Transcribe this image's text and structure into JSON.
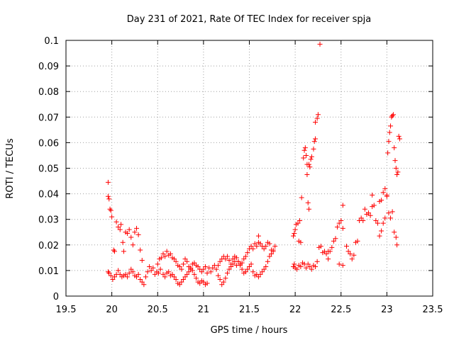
{
  "chart_data": {
    "type": "scatter",
    "title": "Day 231 of 2021, Rate Of TEC Index for receiver spja",
    "xlabel": "GPS time / hours",
    "ylabel": "ROTI / TECUs",
    "xlim": [
      19.5,
      23.5
    ],
    "ylim": [
      0,
      0.1
    ],
    "xticks": [
      "19.5",
      "20",
      "20.5",
      "21",
      "21.5",
      "22",
      "22.5",
      "23",
      "23.5"
    ],
    "yticks": [
      "0",
      "0.01",
      "0.02",
      "0.03",
      "0.04",
      "0.05",
      "0.06",
      "0.07",
      "0.08",
      "0.09",
      "0.1"
    ],
    "grid": true,
    "marker": "plus",
    "color": "#ff0000",
    "series": [
      {
        "name": "ROTI",
        "points": [
          [
            19.96,
            0.0445
          ],
          [
            19.96,
            0.039
          ],
          [
            19.97,
            0.038
          ],
          [
            19.98,
            0.034
          ],
          [
            19.99,
            0.0335
          ],
          [
            20.0,
            0.031
          ],
          [
            20.02,
            0.018
          ],
          [
            20.03,
            0.0175
          ],
          [
            20.05,
            0.029
          ],
          [
            20.07,
            0.027
          ],
          [
            20.09,
            0.026
          ],
          [
            20.1,
            0.028
          ],
          [
            20.12,
            0.021
          ],
          [
            20.13,
            0.0175
          ],
          [
            20.15,
            0.025
          ],
          [
            20.17,
            0.0245
          ],
          [
            20.19,
            0.026
          ],
          [
            20.21,
            0.023
          ],
          [
            20.23,
            0.02
          ],
          [
            20.25,
            0.025
          ],
          [
            20.27,
            0.0265
          ],
          [
            20.29,
            0.024
          ],
          [
            20.31,
            0.018
          ],
          [
            20.33,
            0.014
          ],
          [
            19.96,
            0.0095
          ],
          [
            19.97,
            0.009
          ],
          [
            19.99,
            0.008
          ],
          [
            20.01,
            0.0065
          ],
          [
            20.03,
            0.0075
          ],
          [
            20.05,
            0.0085
          ],
          [
            20.07,
            0.01
          ],
          [
            20.09,
            0.0085
          ],
          [
            20.11,
            0.0075
          ],
          [
            20.13,
            0.008
          ],
          [
            20.15,
            0.0085
          ],
          [
            20.17,
            0.0075
          ],
          [
            20.19,
            0.009
          ],
          [
            20.21,
            0.0105
          ],
          [
            20.23,
            0.0095
          ],
          [
            20.25,
            0.008
          ],
          [
            20.27,
            0.0075
          ],
          [
            20.29,
            0.0085
          ],
          [
            20.31,
            0.0065
          ],
          [
            20.33,
            0.0055
          ],
          [
            20.35,
            0.0045
          ],
          [
            20.37,
            0.0075
          ],
          [
            20.39,
            0.0095
          ],
          [
            20.41,
            0.0115
          ],
          [
            20.43,
            0.01
          ],
          [
            20.45,
            0.011
          ],
          [
            20.47,
            0.0085
          ],
          [
            20.49,
            0.0095
          ],
          [
            20.51,
            0.009
          ],
          [
            20.53,
            0.0105
          ],
          [
            20.5,
            0.0125
          ],
          [
            20.52,
            0.0145
          ],
          [
            20.54,
            0.015
          ],
          [
            20.56,
            0.0165
          ],
          [
            20.58,
            0.0155
          ],
          [
            20.6,
            0.0175
          ],
          [
            20.62,
            0.016
          ],
          [
            20.64,
            0.0165
          ],
          [
            20.66,
            0.015
          ],
          [
            20.68,
            0.0145
          ],
          [
            20.7,
            0.0135
          ],
          [
            20.72,
            0.012
          ],
          [
            20.74,
            0.0115
          ],
          [
            20.76,
            0.0105
          ],
          [
            20.78,
            0.0125
          ],
          [
            20.8,
            0.0145
          ],
          [
            20.82,
            0.0135
          ],
          [
            20.84,
            0.0115
          ],
          [
            20.86,
            0.0105
          ],
          [
            20.88,
            0.0125
          ],
          [
            20.9,
            0.013
          ],
          [
            20.92,
            0.012
          ],
          [
            20.94,
            0.0115
          ],
          [
            20.96,
            0.0105
          ],
          [
            20.98,
            0.0095
          ],
          [
            21.0,
            0.0105
          ],
          [
            21.02,
            0.0115
          ],
          [
            21.04,
            0.009
          ],
          [
            20.56,
            0.0085
          ],
          [
            20.58,
            0.0075
          ],
          [
            20.6,
            0.009
          ],
          [
            20.62,
            0.0095
          ],
          [
            20.64,
            0.008
          ],
          [
            20.66,
            0.0085
          ],
          [
            20.68,
            0.0075
          ],
          [
            20.7,
            0.0065
          ],
          [
            20.72,
            0.005
          ],
          [
            20.74,
            0.0045
          ],
          [
            20.76,
            0.0055
          ],
          [
            20.78,
            0.0065
          ],
          [
            20.8,
            0.0075
          ],
          [
            20.82,
            0.0085
          ],
          [
            20.84,
            0.0095
          ],
          [
            20.86,
            0.011
          ],
          [
            20.88,
            0.01
          ],
          [
            20.9,
            0.0085
          ],
          [
            20.92,
            0.007
          ],
          [
            20.94,
            0.0055
          ],
          [
            20.96,
            0.005
          ],
          [
            20.98,
            0.006
          ],
          [
            21.0,
            0.0055
          ],
          [
            21.02,
            0.0045
          ],
          [
            21.04,
            0.005
          ],
          [
            21.06,
            0.011
          ],
          [
            21.08,
            0.0095
          ],
          [
            21.1,
            0.011
          ],
          [
            21.12,
            0.012
          ],
          [
            21.14,
            0.0105
          ],
          [
            21.16,
            0.012
          ],
          [
            21.18,
            0.0135
          ],
          [
            21.2,
            0.0145
          ],
          [
            21.22,
            0.0155
          ],
          [
            21.24,
            0.0145
          ],
          [
            21.26,
            0.0155
          ],
          [
            21.28,
            0.014
          ],
          [
            21.3,
            0.0125
          ],
          [
            21.32,
            0.0145
          ],
          [
            21.34,
            0.0155
          ],
          [
            21.36,
            0.015
          ],
          [
            21.38,
            0.0135
          ],
          [
            21.4,
            0.0125
          ],
          [
            21.42,
            0.013
          ],
          [
            21.44,
            0.0145
          ],
          [
            21.46,
            0.0155
          ],
          [
            21.48,
            0.017
          ],
          [
            21.5,
            0.0185
          ],
          [
            21.52,
            0.0195
          ],
          [
            21.54,
            0.0185
          ],
          [
            21.56,
            0.0205
          ],
          [
            21.58,
            0.0195
          ],
          [
            21.6,
            0.021
          ],
          [
            21.62,
            0.0205
          ],
          [
            21.64,
            0.0195
          ],
          [
            21.66,
            0.0185
          ],
          [
            21.68,
            0.0195
          ],
          [
            21.7,
            0.021
          ],
          [
            21.72,
            0.0205
          ],
          [
            21.74,
            0.018
          ],
          [
            21.76,
            0.0175
          ],
          [
            21.78,
            0.0195
          ],
          [
            21.6,
            0.0235
          ],
          [
            21.16,
            0.008
          ],
          [
            21.18,
            0.0065
          ],
          [
            21.2,
            0.0045
          ],
          [
            21.22,
            0.0055
          ],
          [
            21.24,
            0.007
          ],
          [
            21.26,
            0.009
          ],
          [
            21.28,
            0.0105
          ],
          [
            21.3,
            0.0115
          ],
          [
            21.32,
            0.0125
          ],
          [
            21.34,
            0.0135
          ],
          [
            21.36,
            0.012
          ],
          [
            21.38,
            0.0135
          ],
          [
            21.4,
            0.012
          ],
          [
            21.42,
            0.0105
          ],
          [
            21.44,
            0.009
          ],
          [
            21.46,
            0.0095
          ],
          [
            21.48,
            0.0105
          ],
          [
            21.5,
            0.0115
          ],
          [
            21.52,
            0.0125
          ],
          [
            21.54,
            0.0095
          ],
          [
            21.56,
            0.008
          ],
          [
            21.58,
            0.0085
          ],
          [
            21.6,
            0.0075
          ],
          [
            21.62,
            0.0085
          ],
          [
            21.64,
            0.0095
          ],
          [
            21.66,
            0.0105
          ],
          [
            21.68,
            0.0115
          ],
          [
            21.7,
            0.0135
          ],
          [
            21.72,
            0.0155
          ],
          [
            21.74,
            0.0165
          ],
          [
            21.76,
            0.018
          ],
          [
            21.98,
            0.0235
          ],
          [
            21.99,
            0.0245
          ],
          [
            22.0,
            0.026
          ],
          [
            22.01,
            0.028
          ],
          [
            22.03,
            0.0285
          ],
          [
            22.05,
            0.0295
          ],
          [
            22.04,
            0.0215
          ],
          [
            22.06,
            0.021
          ],
          [
            22.07,
            0.0385
          ],
          [
            22.09,
            0.054
          ],
          [
            22.1,
            0.057
          ],
          [
            22.11,
            0.058
          ],
          [
            22.12,
            0.055
          ],
          [
            22.13,
            0.0515
          ],
          [
            22.13,
            0.0475
          ],
          [
            22.14,
            0.0365
          ],
          [
            22.15,
            0.034
          ],
          [
            22.15,
            0.0515
          ],
          [
            22.16,
            0.0505
          ],
          [
            22.17,
            0.0535
          ],
          [
            22.18,
            0.0545
          ],
          [
            22.2,
            0.0575
          ],
          [
            22.21,
            0.0605
          ],
          [
            22.22,
            0.0615
          ],
          [
            22.22,
            0.068
          ],
          [
            22.24,
            0.0695
          ],
          [
            22.25,
            0.071
          ],
          [
            22.27,
            0.0985
          ],
          [
            21.98,
            0.0115
          ],
          [
            21.99,
            0.0125
          ],
          [
            22.0,
            0.011
          ],
          [
            22.02,
            0.0105
          ],
          [
            22.04,
            0.012
          ],
          [
            22.06,
            0.0115
          ],
          [
            22.08,
            0.013
          ],
          [
            22.1,
            0.0125
          ],
          [
            22.12,
            0.011
          ],
          [
            22.14,
            0.0125
          ],
          [
            22.16,
            0.0115
          ],
          [
            22.18,
            0.0105
          ],
          [
            22.2,
            0.012
          ],
          [
            22.22,
            0.0115
          ],
          [
            22.24,
            0.0135
          ],
          [
            22.26,
            0.019
          ],
          [
            22.28,
            0.0195
          ],
          [
            22.3,
            0.017
          ],
          [
            22.32,
            0.0175
          ],
          [
            22.34,
            0.0165
          ],
          [
            22.36,
            0.0145
          ],
          [
            22.38,
            0.0175
          ],
          [
            22.4,
            0.019
          ],
          [
            22.42,
            0.0215
          ],
          [
            22.44,
            0.0225
          ],
          [
            22.46,
            0.027
          ],
          [
            22.48,
            0.0285
          ],
          [
            22.5,
            0.0295
          ],
          [
            22.52,
            0.0265
          ],
          [
            22.52,
            0.0355
          ],
          [
            22.48,
            0.0125
          ],
          [
            22.52,
            0.012
          ],
          [
            22.36,
            0.0175
          ],
          [
            22.56,
            0.0195
          ],
          [
            22.58,
            0.0175
          ],
          [
            22.6,
            0.0165
          ],
          [
            22.62,
            0.0145
          ],
          [
            22.64,
            0.016
          ],
          [
            22.66,
            0.021
          ],
          [
            22.68,
            0.0215
          ],
          [
            22.7,
            0.0295
          ],
          [
            22.72,
            0.0305
          ],
          [
            22.74,
            0.0295
          ],
          [
            22.76,
            0.034
          ],
          [
            22.78,
            0.032
          ],
          [
            22.8,
            0.0325
          ],
          [
            22.82,
            0.0315
          ],
          [
            22.84,
            0.035
          ],
          [
            22.86,
            0.0355
          ],
          [
            22.88,
            0.0295
          ],
          [
            22.9,
            0.0285
          ],
          [
            22.92,
            0.037
          ],
          [
            22.94,
            0.0375
          ],
          [
            22.96,
            0.0405
          ],
          [
            22.98,
            0.042
          ],
          [
            23.0,
            0.039
          ],
          [
            23.02,
            0.0325
          ],
          [
            23.04,
            0.0305
          ],
          [
            23.06,
            0.033
          ],
          [
            23.08,
            0.025
          ],
          [
            23.1,
            0.023
          ],
          [
            23.11,
            0.02
          ],
          [
            22.84,
            0.0395
          ],
          [
            22.92,
            0.0235
          ],
          [
            22.94,
            0.0255
          ],
          [
            22.96,
            0.0285
          ],
          [
            22.98,
            0.0305
          ],
          [
            23.0,
            0.0395
          ],
          [
            23.01,
            0.056
          ],
          [
            23.02,
            0.0605
          ],
          [
            23.03,
            0.064
          ],
          [
            23.04,
            0.0665
          ],
          [
            23.05,
            0.07
          ],
          [
            23.06,
            0.0705
          ],
          [
            23.07,
            0.071
          ],
          [
            23.08,
            0.058
          ],
          [
            23.09,
            0.053
          ],
          [
            23.1,
            0.05
          ],
          [
            23.11,
            0.0475
          ],
          [
            23.12,
            0.0485
          ],
          [
            23.13,
            0.0625
          ],
          [
            23.14,
            0.0615
          ]
        ]
      }
    ]
  }
}
